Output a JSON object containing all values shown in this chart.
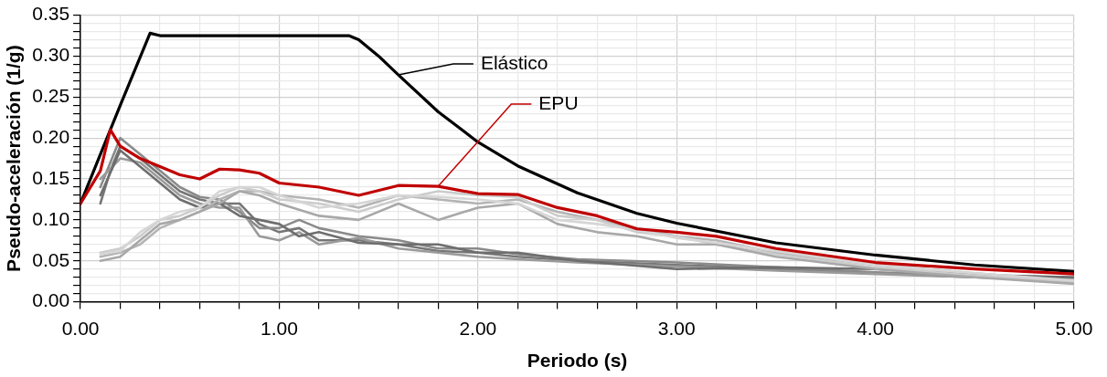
{
  "chart_data": {
    "type": "line",
    "xlabel": "Periodo (s)",
    "ylabel": "Pseudo-aceleración (1/g)",
    "xlim": [
      0,
      5
    ],
    "ylim": [
      0,
      0.35
    ],
    "xticks": [
      {
        "value": 0,
        "label": "0.00"
      },
      {
        "value": 0.2,
        "label": null
      },
      {
        "value": 0.4,
        "label": null
      },
      {
        "value": 0.6,
        "label": null
      },
      {
        "value": 0.8,
        "label": null
      },
      {
        "value": 1,
        "label": "1.00"
      },
      {
        "value": 1.2,
        "label": null
      },
      {
        "value": 1.4,
        "label": null
      },
      {
        "value": 1.6,
        "label": null
      },
      {
        "value": 1.8,
        "label": null
      },
      {
        "value": 2,
        "label": "2.00"
      },
      {
        "value": 2.2,
        "label": null
      },
      {
        "value": 2.4,
        "label": null
      },
      {
        "value": 2.6,
        "label": null
      },
      {
        "value": 2.8,
        "label": null
      },
      {
        "value": 3,
        "label": "3.00"
      },
      {
        "value": 3.2,
        "label": null
      },
      {
        "value": 3.4,
        "label": null
      },
      {
        "value": 3.6,
        "label": null
      },
      {
        "value": 3.8,
        "label": null
      },
      {
        "value": 4,
        "label": "4.00"
      },
      {
        "value": 4.2,
        "label": null
      },
      {
        "value": 4.4,
        "label": null
      },
      {
        "value": 4.6,
        "label": null
      },
      {
        "value": 4.8,
        "label": null
      },
      {
        "value": 5,
        "label": "5.00"
      }
    ],
    "yticks": [
      {
        "value": 0,
        "label": "0.00"
      },
      {
        "value": 0.01,
        "label": null
      },
      {
        "value": 0.02,
        "label": null
      },
      {
        "value": 0.03,
        "label": null
      },
      {
        "value": 0.04,
        "label": null
      },
      {
        "value": 0.05,
        "label": "0.05"
      },
      {
        "value": 0.06,
        "label": null
      },
      {
        "value": 0.07,
        "label": null
      },
      {
        "value": 0.08,
        "label": null
      },
      {
        "value": 0.09,
        "label": null
      },
      {
        "value": 0.1,
        "label": "0.10"
      },
      {
        "value": 0.11,
        "label": null
      },
      {
        "value": 0.12,
        "label": null
      },
      {
        "value": 0.13,
        "label": null
      },
      {
        "value": 0.14,
        "label": null
      },
      {
        "value": 0.15,
        "label": "0.15"
      },
      {
        "value": 0.16,
        "label": null
      },
      {
        "value": 0.17,
        "label": null
      },
      {
        "value": 0.18,
        "label": null
      },
      {
        "value": 0.19,
        "label": null
      },
      {
        "value": 0.2,
        "label": "0.20"
      },
      {
        "value": 0.21,
        "label": null
      },
      {
        "value": 0.22,
        "label": null
      },
      {
        "value": 0.23,
        "label": null
      },
      {
        "value": 0.24,
        "label": null
      },
      {
        "value": 0.25,
        "label": "0.25"
      },
      {
        "value": 0.26,
        "label": null
      },
      {
        "value": 0.27,
        "label": null
      },
      {
        "value": 0.28,
        "label": null
      },
      {
        "value": 0.29,
        "label": null
      },
      {
        "value": 0.3,
        "label": "0.30"
      },
      {
        "value": 0.31,
        "label": null
      },
      {
        "value": 0.32,
        "label": null
      },
      {
        "value": 0.33,
        "label": null
      },
      {
        "value": 0.34,
        "label": null
      },
      {
        "value": 0.35,
        "label": "0.35"
      }
    ],
    "grid": true,
    "marker": "none",
    "line_style": "solid",
    "series": [
      {
        "color": "#767676",
        "x": [
          0.1,
          0.15,
          0.2,
          0.3,
          0.4,
          0.5,
          0.6,
          0.7,
          0.8,
          0.9,
          1.0,
          1.1,
          1.2,
          1.4,
          1.6,
          1.8,
          2.0,
          2.2,
          2.5,
          3.0,
          3.5,
          4.0,
          4.5,
          5.0
        ],
        "values": [
          0.12,
          0.16,
          0.19,
          0.175,
          0.155,
          0.135,
          0.125,
          0.12,
          0.12,
          0.095,
          0.085,
          0.09,
          0.075,
          0.075,
          0.07,
          0.062,
          0.06,
          0.055,
          0.05,
          0.045,
          0.04,
          0.035,
          0.03,
          0.028
        ]
      },
      {
        "color": "#8a8a8a",
        "x": [
          0.1,
          0.2,
          0.3,
          0.4,
          0.5,
          0.6,
          0.7,
          0.8,
          0.9,
          1.0,
          1.1,
          1.2,
          1.4,
          1.6,
          1.8,
          2.0,
          2.2,
          2.5,
          3.0,
          3.5,
          4.0,
          4.5,
          5.0
        ],
        "values": [
          0.14,
          0.2,
          0.18,
          0.16,
          0.14,
          0.128,
          0.125,
          0.11,
          0.09,
          0.09,
          0.1,
          0.09,
          0.08,
          0.075,
          0.065,
          0.065,
          0.058,
          0.052,
          0.048,
          0.042,
          0.036,
          0.032,
          0.03
        ]
      },
      {
        "color": "#9a9a9a",
        "x": [
          0.1,
          0.2,
          0.3,
          0.4,
          0.5,
          0.6,
          0.7,
          0.8,
          0.9,
          1.0,
          1.1,
          1.2,
          1.4,
          1.6,
          1.8,
          2.0,
          2.2,
          2.5,
          3.0,
          3.5,
          4.0,
          4.5,
          5.0
        ],
        "values": [
          0.15,
          0.175,
          0.17,
          0.15,
          0.13,
          0.12,
          0.115,
          0.115,
          0.08,
          0.075,
          0.085,
          0.07,
          0.078,
          0.065,
          0.06,
          0.055,
          0.052,
          0.048,
          0.043,
          0.038,
          0.034,
          0.03,
          0.027
        ]
      },
      {
        "color": "#6e6e6e",
        "x": [
          0.1,
          0.2,
          0.3,
          0.4,
          0.5,
          0.6,
          0.7,
          0.8,
          0.9,
          1.0,
          1.1,
          1.2,
          1.4,
          1.6,
          1.8,
          2.0,
          2.2,
          2.5,
          3.0,
          3.5,
          4.0,
          4.5,
          5.0
        ],
        "values": [
          0.13,
          0.185,
          0.165,
          0.145,
          0.125,
          0.115,
          0.12,
          0.105,
          0.1,
          0.095,
          0.08,
          0.085,
          0.072,
          0.07,
          0.07,
          0.06,
          0.06,
          0.05,
          0.04,
          0.042,
          0.04,
          0.033,
          0.03
        ]
      },
      {
        "color": "#b4b4b4",
        "x": [
          0.1,
          0.2,
          0.3,
          0.4,
          0.5,
          0.6,
          0.7,
          0.8,
          0.9,
          1.0,
          1.2,
          1.4,
          1.6,
          1.8,
          2.0,
          2.2,
          2.4,
          2.6,
          2.8,
          3.0,
          3.2,
          3.5,
          4.0,
          4.5,
          5.0
        ],
        "values": [
          0.055,
          0.06,
          0.07,
          0.09,
          0.1,
          0.11,
          0.125,
          0.135,
          0.135,
          0.13,
          0.125,
          0.115,
          0.13,
          0.125,
          0.12,
          0.125,
          0.11,
          0.1,
          0.09,
          0.08,
          0.075,
          0.06,
          0.045,
          0.035,
          0.025
        ]
      },
      {
        "color": "#cccccc",
        "x": [
          0.1,
          0.2,
          0.3,
          0.4,
          0.5,
          0.6,
          0.7,
          0.8,
          0.9,
          1.0,
          1.2,
          1.4,
          1.6,
          1.8,
          2.0,
          2.2,
          2.4,
          2.6,
          2.8,
          3.0,
          3.2,
          3.5,
          4.0,
          4.5,
          5.0
        ],
        "values": [
          0.06,
          0.065,
          0.08,
          0.1,
          0.105,
          0.115,
          0.13,
          0.14,
          0.135,
          0.125,
          0.12,
          0.11,
          0.125,
          0.135,
          0.13,
          0.128,
          0.105,
          0.1,
          0.085,
          0.08,
          0.07,
          0.058,
          0.042,
          0.032,
          0.024
        ]
      },
      {
        "color": "#a8a8a8",
        "x": [
          0.1,
          0.2,
          0.3,
          0.4,
          0.5,
          0.6,
          0.7,
          0.8,
          0.9,
          1.0,
          1.2,
          1.4,
          1.6,
          1.8,
          2.0,
          2.2,
          2.4,
          2.6,
          2.8,
          3.0,
          3.2,
          3.5,
          4.0,
          4.5,
          5.0
        ],
        "values": [
          0.05,
          0.055,
          0.075,
          0.095,
          0.1,
          0.11,
          0.12,
          0.135,
          0.13,
          0.12,
          0.105,
          0.1,
          0.12,
          0.1,
          0.115,
          0.12,
          0.095,
          0.085,
          0.08,
          0.07,
          0.07,
          0.055,
          0.04,
          0.03,
          0.022
        ]
      },
      {
        "color": "#d6d6d6",
        "x": [
          0.1,
          0.2,
          0.3,
          0.4,
          0.5,
          0.6,
          0.7,
          0.8,
          0.9,
          1.0,
          1.2,
          1.4,
          1.6,
          1.8,
          2.0,
          2.2,
          2.4,
          2.6,
          2.8,
          3.0,
          3.2,
          3.5,
          4.0,
          4.5,
          5.0
        ],
        "values": [
          0.058,
          0.062,
          0.085,
          0.1,
          0.11,
          0.115,
          0.135,
          0.14,
          0.14,
          0.13,
          0.115,
          0.12,
          0.13,
          0.128,
          0.125,
          0.12,
          0.1,
          0.095,
          0.088,
          0.078,
          0.072,
          0.062,
          0.045,
          0.035,
          0.026
        ]
      },
      {
        "name": "Elástico",
        "color": "#000000",
        "x": [
          0,
          0.1,
          0.2,
          0.35,
          0.4,
          0.6,
          0.8,
          1.0,
          1.2,
          1.35,
          1.4,
          1.5,
          1.6,
          1.8,
          2.0,
          2.2,
          2.5,
          2.8,
          3.0,
          3.5,
          4.0,
          4.5,
          5.0
        ],
        "values": [
          0.12,
          0.18,
          0.24,
          0.328,
          0.325,
          0.325,
          0.325,
          0.325,
          0.325,
          0.325,
          0.32,
          0.3,
          0.277,
          0.232,
          0.195,
          0.166,
          0.133,
          0.108,
          0.096,
          0.072,
          0.057,
          0.045,
          0.037
        ]
      },
      {
        "name": "EPU",
        "color": "#c00000",
        "x": [
          0,
          0.1,
          0.15,
          0.2,
          0.3,
          0.4,
          0.5,
          0.6,
          0.7,
          0.8,
          0.9,
          1.0,
          1.2,
          1.4,
          1.6,
          1.8,
          2.0,
          2.2,
          2.4,
          2.6,
          2.8,
          3.0,
          3.2,
          3.5,
          4.0,
          4.5,
          5.0
        ],
        "values": [
          0.12,
          0.16,
          0.21,
          0.19,
          0.175,
          0.165,
          0.155,
          0.15,
          0.162,
          0.161,
          0.157,
          0.145,
          0.14,
          0.13,
          0.142,
          0.141,
          0.132,
          0.131,
          0.115,
          0.105,
          0.089,
          0.085,
          0.08,
          0.065,
          0.048,
          0.04,
          0.034
        ]
      }
    ]
  }
}
